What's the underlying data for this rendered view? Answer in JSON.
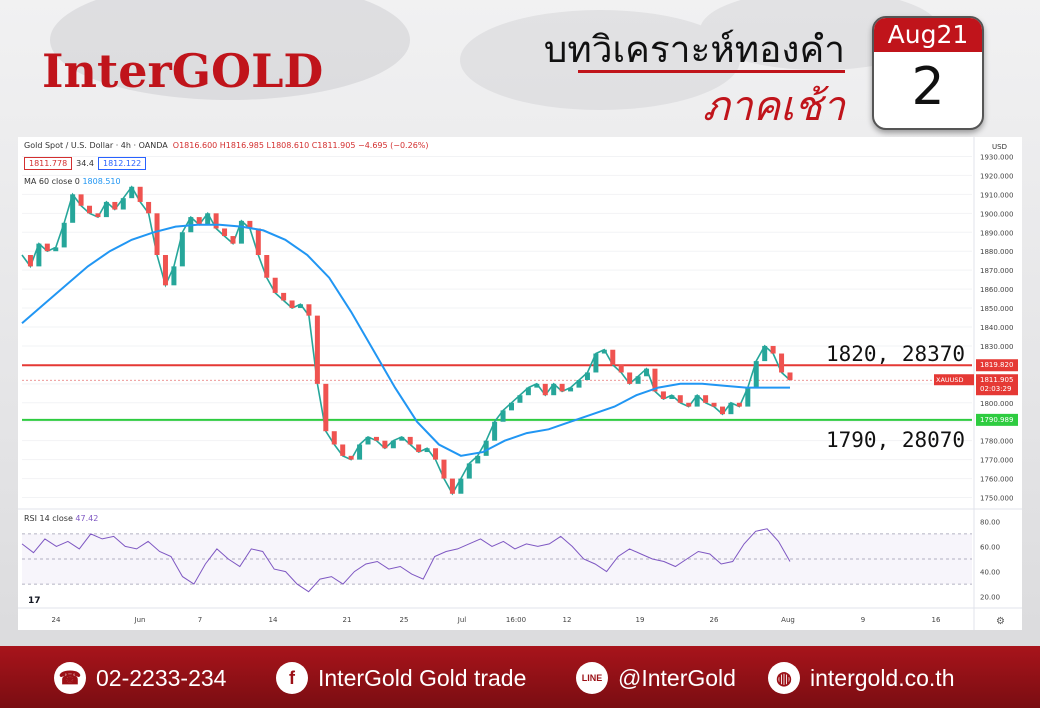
{
  "brand": {
    "logo": "InterGOLD",
    "accent": "#c0141b"
  },
  "title": {
    "line1": "บทวิเคราะห์ทองคำ",
    "line2": "ภาคเช้า"
  },
  "calendar": {
    "month": "Aug21",
    "day": "2"
  },
  "chart_header": {
    "symbol": "Gold Spot / U.S. Dollar · 4h · OANDA",
    "ohlc": "O1816.600 H1816.985 L1808.610 C1811.905 −4.695 (−0.26%)",
    "sell": "1811.778",
    "spread": "34.4",
    "buy": "1812.122",
    "ma_label": "MA 60 close 0",
    "ma_value": "1808.510",
    "rsi_label": "RSI 14 close",
    "rsi_value": "47.42",
    "currency": "USD",
    "price_tag": "1811.905",
    "price_tag_sym": "XAUUSD",
    "countdown": "02:03:29",
    "res_tag": "1819.820",
    "sup_tag": "1790.989"
  },
  "annotations": {
    "resistance": "1820, 28370",
    "support": "1790, 28070"
  },
  "chart_data": {
    "type": "line",
    "ylim": [
      1745,
      1935
    ],
    "yticks": [
      1750,
      1760,
      1770,
      1780,
      1790,
      1800,
      1810,
      1820,
      1830,
      1840,
      1850,
      1860,
      1870,
      1880,
      1890,
      1900,
      1910,
      1920,
      1930
    ],
    "xticks": [
      "24",
      "Jun",
      "7",
      "14",
      "21",
      "25",
      "Jul",
      "16:00",
      "12",
      "19",
      "26",
      "Aug",
      "9",
      "16"
    ],
    "series": [
      {
        "values": [
          1878,
          1872,
          1884,
          1880,
          1882,
          1895,
          1910,
          1904,
          1900,
          1898,
          1906,
          1902,
          1908,
          1914,
          1906,
          1900,
          1878,
          1862,
          1872,
          1890,
          1898,
          1894,
          1900,
          1892,
          1888,
          1884,
          1896,
          1892,
          1878,
          1866,
          1858,
          1854,
          1850,
          1852,
          1846,
          1810,
          1785,
          1778,
          1772,
          1770,
          1778,
          1782,
          1780,
          1776,
          1780,
          1782,
          1778,
          1774,
          1776,
          1770,
          1760,
          1752,
          1760,
          1768,
          1772,
          1780,
          1790,
          1796,
          1800,
          1804,
          1808,
          1810,
          1804,
          1810,
          1806,
          1808,
          1812,
          1816,
          1826,
          1828,
          1820,
          1816,
          1810,
          1814,
          1818,
          1806,
          1802,
          1804,
          1800,
          1798,
          1804,
          1800,
          1798,
          1794,
          1800,
          1798,
          1808,
          1822,
          1830,
          1826,
          1816,
          1812
        ]
      },
      {
        "name": "MA 60",
        "values": [
          1842,
          1852,
          1862,
          1872,
          1880,
          1886,
          1890,
          1893,
          1894,
          1894,
          1893,
          1891,
          1886,
          1878,
          1866,
          1848,
          1828,
          1808,
          1790,
          1778,
          1772,
          1774,
          1780,
          1784,
          1786,
          1790,
          1794,
          1798,
          1804,
          1808,
          1810,
          1810,
          1809,
          1808,
          1808,
          1808
        ]
      }
    ],
    "rsi": {
      "name": "RSI 14",
      "levels": [
        70,
        50,
        30
      ],
      "yticks": [
        80,
        60,
        40,
        20
      ],
      "values": [
        62,
        55,
        66,
        60,
        64,
        58,
        70,
        66,
        68,
        60,
        58,
        64,
        56,
        52,
        36,
        30,
        46,
        58,
        50,
        44,
        58,
        56,
        42,
        40,
        30,
        24,
        34,
        36,
        30,
        40,
        46,
        48,
        42,
        44,
        38,
        34,
        52,
        56,
        58,
        62,
        66,
        60,
        64,
        58,
        62,
        60,
        62,
        68,
        60,
        50,
        46,
        40,
        52,
        58,
        54,
        50,
        48,
        44,
        50,
        56,
        54,
        46,
        48,
        62,
        72,
        74,
        64,
        48
      ]
    },
    "hlines": [
      {
        "value": 1819.82,
        "color": "#e53935"
      },
      {
        "value": 1790.989,
        "color": "#2ecc40"
      },
      {
        "value": 1811.905,
        "color": "#e57373"
      }
    ]
  },
  "footer": {
    "phone": "02-2233-234",
    "facebook": "InterGold Gold trade",
    "line": "@InterGold",
    "web": "intergold.co.th",
    "icons": [
      "phone-icon",
      "facebook-icon",
      "line-icon",
      "globe-icon"
    ]
  }
}
